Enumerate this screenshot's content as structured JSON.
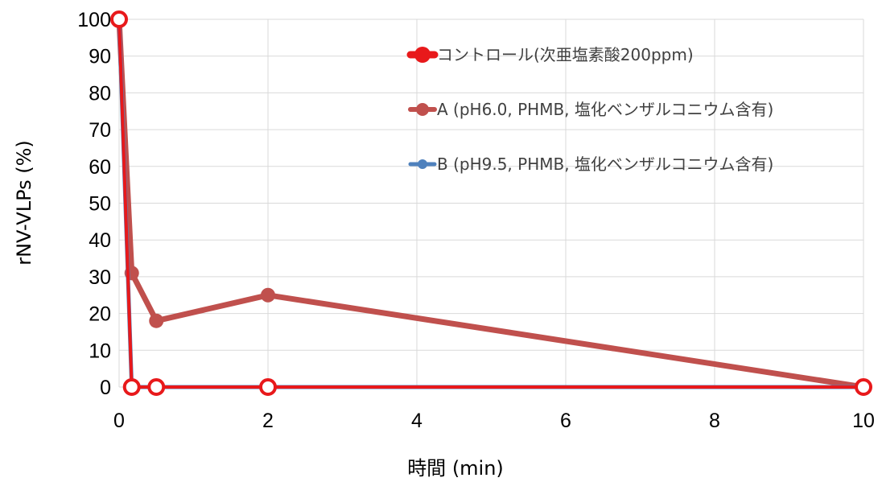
{
  "chart_data": {
    "type": "line",
    "xlabel": "時間 (min)",
    "ylabel": "rNV-VLPs (%)",
    "xlim": [
      0,
      10
    ],
    "ylim": [
      0,
      100
    ],
    "xticks": [
      0,
      2,
      4,
      6,
      8,
      10
    ],
    "yticks": [
      0,
      10,
      20,
      30,
      40,
      50,
      60,
      70,
      80,
      90,
      100
    ],
    "grid": true,
    "legend_position": "top-right",
    "series": [
      {
        "name": "コントロール(次亜塩素酸200ppm)",
        "color": "#e8191b",
        "x": [
          0,
          0.17,
          0.5,
          2,
          10
        ],
        "y": [
          100,
          0,
          0,
          0,
          0
        ]
      },
      {
        "name": "A (pH6.0, PHMB, 塩化ベンザルコニウム含有)",
        "color": "#c0504d",
        "x": [
          0,
          0.17,
          0.5,
          2,
          10
        ],
        "y": [
          100,
          31,
          18,
          25,
          0
        ]
      },
      {
        "name": "B (pH9.5, PHMB, 塩化ベンザルコニウム含有)",
        "color": "#4f81bd",
        "x": [
          0,
          0.17,
          0.5,
          2,
          10
        ],
        "y": [
          100,
          0,
          0,
          0,
          0
        ]
      }
    ]
  }
}
